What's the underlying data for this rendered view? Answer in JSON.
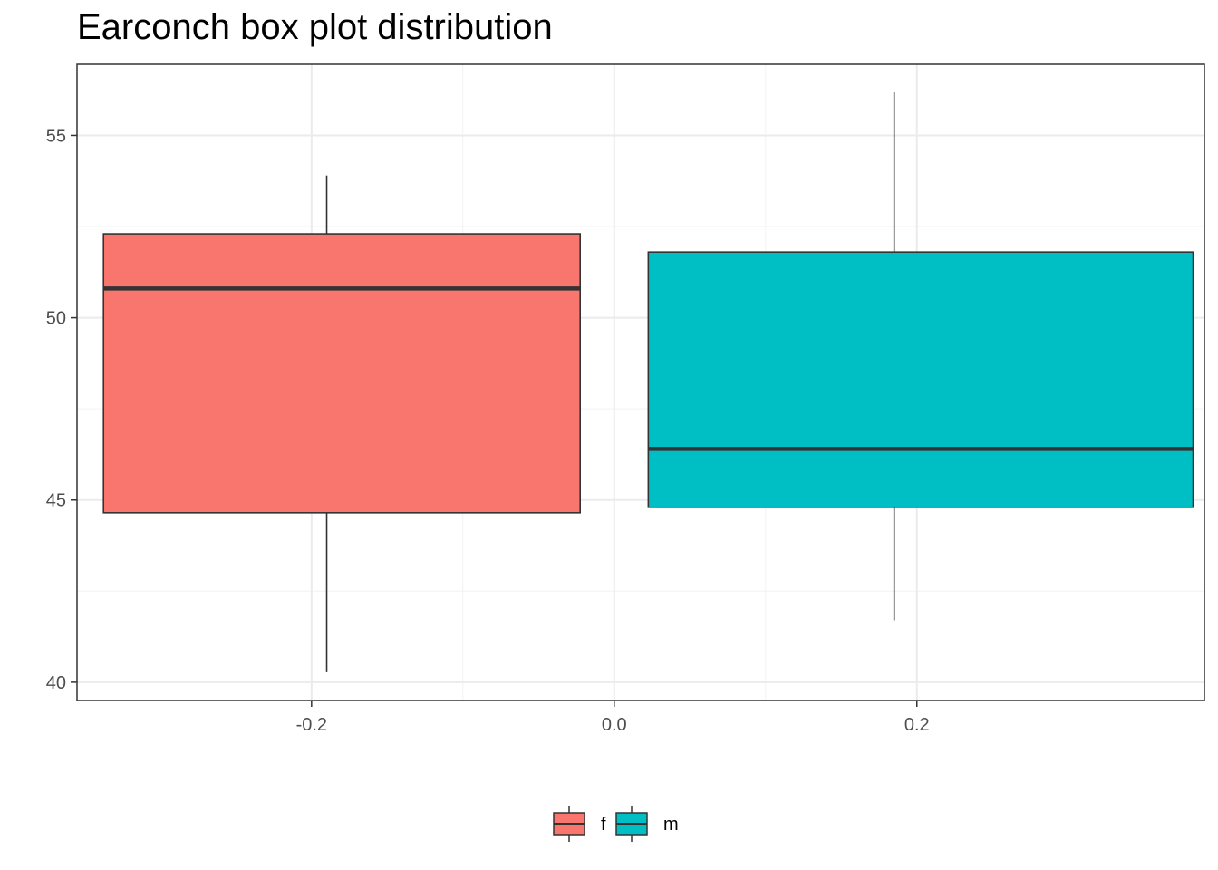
{
  "chart_data": {
    "type": "box",
    "title": "Earconch box plot distribution",
    "xlabel": "",
    "ylabel": "",
    "xlim": [
      -0.355,
      0.39
    ],
    "ylim": [
      39.5,
      56.95
    ],
    "x_ticks": [
      -0.2,
      0.0,
      0.2
    ],
    "x_tick_labels": [
      "-0.2",
      "0.0",
      "0.2"
    ],
    "y_ticks": [
      40,
      45,
      50,
      55
    ],
    "y_tick_labels": [
      "40",
      "45",
      "50",
      "55"
    ],
    "grid": true,
    "legend_position": "bottom",
    "series": [
      {
        "name": "f",
        "color": "#F8766D",
        "x_left": -0.3375,
        "x_right": -0.0225,
        "x_center": -0.19,
        "lower_whisker": 40.3,
        "q1": 44.65,
        "median": 50.8,
        "q3": 52.3,
        "upper_whisker": 53.9
      },
      {
        "name": "m",
        "color": "#00BFC4",
        "x_left": 0.0225,
        "x_right": 0.3825,
        "x_center": 0.185,
        "lower_whisker": 41.7,
        "q1": 44.8,
        "median": 46.4,
        "q3": 51.8,
        "upper_whisker": 56.2
      }
    ]
  }
}
